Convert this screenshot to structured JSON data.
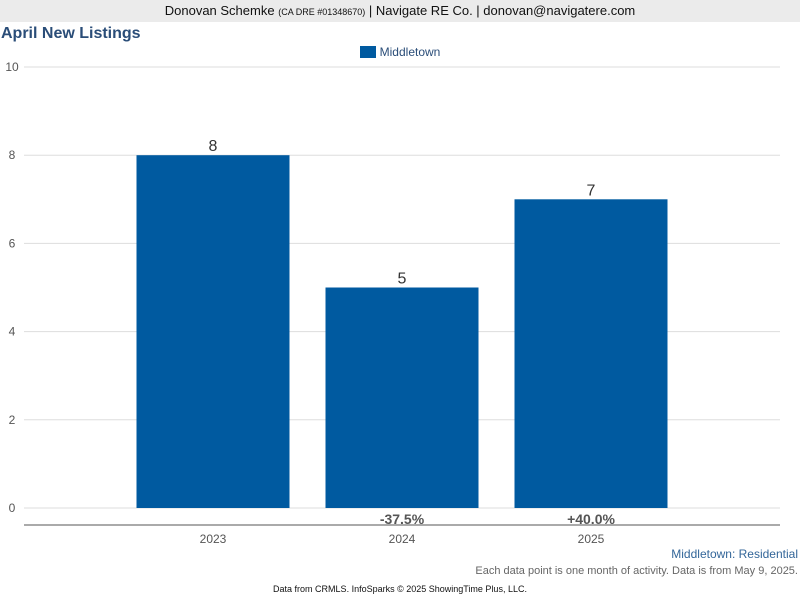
{
  "header": {
    "name": "Donovan Schemke",
    "license": "(CA DRE #01348670)",
    "rest": "| Navigate RE Co. | donovan@navigatere.com"
  },
  "chart_data": {
    "type": "bar",
    "title": "April New Listings",
    "categories": [
      "2023",
      "2024",
      "2025"
    ],
    "series": [
      {
        "name": "Middletown",
        "values": [
          8,
          5,
          7
        ],
        "color": "#005aa0"
      }
    ],
    "data_labels": [
      "8",
      "5",
      "7"
    ],
    "change_labels": [
      "",
      "-37.5%",
      "+40.0%"
    ],
    "ylim": [
      0,
      10
    ],
    "yticks": [
      0,
      2,
      4,
      6,
      8,
      10
    ],
    "grid": true,
    "legend_position": "top-center",
    "xlabel": "",
    "ylabel": ""
  },
  "captions": {
    "series_label": "Middletown: Residential",
    "note": "Each data point is one month of activity. Data is from May 9, 2025."
  },
  "footer": "Data from CRMLS. InfoSparks © 2025 ShowingTime Plus, LLC."
}
